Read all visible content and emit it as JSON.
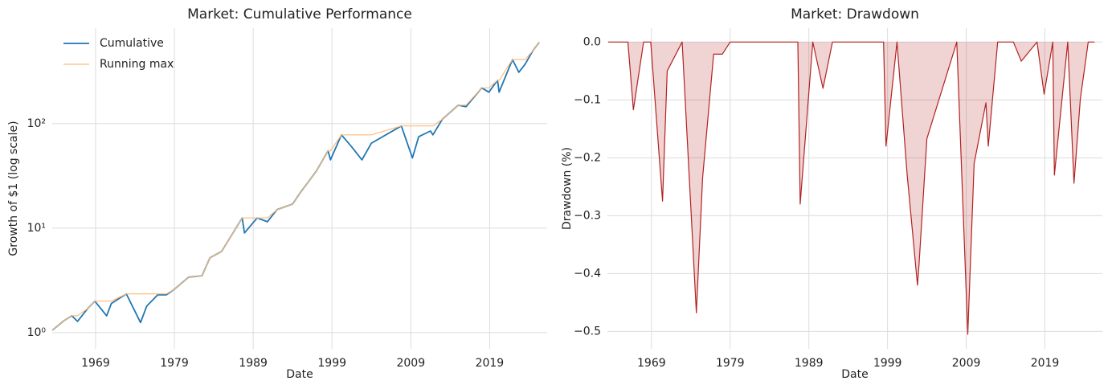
{
  "chart_data": [
    {
      "type": "line",
      "title": "Market: Cumulative Performance",
      "xlabel": "Date",
      "ylabel": "Growth of $1 (log scale)",
      "log_scale": true,
      "grid": true,
      "legend": "upper left",
      "xlim": [
        1963.5,
        2026.3
      ],
      "xticks": [
        1969,
        1979,
        1989,
        1999,
        2009,
        2019
      ],
      "ylim": [
        0.7,
        820
      ],
      "yticks": [
        {
          "value": 1,
          "label": "10⁰"
        },
        {
          "value": 10,
          "label": "10¹"
        },
        {
          "value": 100,
          "label": "10²"
        }
      ],
      "x": [
        1963.5,
        1965,
        1966,
        1966.7,
        1968,
        1968.9,
        1970.4,
        1971,
        1972.9,
        1974.7,
        1975.5,
        1976.9,
        1978,
        1979,
        1980.8,
        1982.5,
        1983.5,
        1985,
        1987.6,
        1987.9,
        1989.5,
        1990.8,
        1992,
        1994,
        1995,
        1997,
        1998.5,
        1998.8,
        2000.2,
        2001.5,
        2002.8,
        2003,
        2004,
        2007.8,
        2009.2,
        2010,
        2011.5,
        2011.8,
        2013,
        2015,
        2016,
        2018,
        2018.9,
        2020,
        2020.2,
        2021.9,
        2022.7,
        2023.5,
        2024.5,
        2025.3
      ],
      "series": [
        {
          "name": "Cumulative",
          "color": "#1f77b4",
          "width": 1.8,
          "values": [
            1.05,
            1.3,
            1.45,
            1.28,
            1.7,
            2.0,
            1.45,
            1.9,
            2.35,
            1.25,
            1.8,
            2.3,
            2.3,
            2.6,
            3.4,
            3.5,
            5.2,
            6.0,
            12.5,
            9.0,
            12.5,
            11.5,
            15,
            17,
            22,
            35,
            55,
            45,
            78,
            60,
            45,
            48,
            65,
            95,
            47,
            75,
            85,
            78,
            110,
            150,
            145,
            220,
            200,
            260,
            200,
            410,
            310,
            370,
            500,
            600
          ]
        },
        {
          "name": "Running max",
          "color": "#ffbb78",
          "width": 1.2,
          "values": [
            1.05,
            1.3,
            1.45,
            1.45,
            1.7,
            2.0,
            2.0,
            2.0,
            2.35,
            2.35,
            2.35,
            2.35,
            2.35,
            2.6,
            3.4,
            3.5,
            5.2,
            6.0,
            12.5,
            12.5,
            12.5,
            12.5,
            15,
            17,
            22,
            35,
            55,
            55,
            78,
            78,
            78,
            78,
            78,
            95,
            95,
            95,
            95,
            95,
            110,
            150,
            150,
            220,
            220,
            260,
            260,
            410,
            410,
            410,
            500,
            600
          ]
        }
      ]
    },
    {
      "type": "area",
      "title": "Market: Drawdown",
      "xlabel": "Date",
      "ylabel": "Drawdown (%)",
      "log_scale": false,
      "grid": true,
      "xlim": [
        1963.4,
        2026.3
      ],
      "xticks": [
        1969,
        1979,
        1989,
        1999,
        2009,
        2019
      ],
      "ylim": [
        -0.53,
        0.024
      ],
      "yticks": [
        {
          "value": -0.5,
          "label": "−0.5"
        },
        {
          "value": -0.4,
          "label": "−0.4"
        },
        {
          "value": -0.3,
          "label": "−0.3"
        },
        {
          "value": -0.2,
          "label": "−0.2"
        },
        {
          "value": -0.1,
          "label": "−0.1"
        },
        {
          "value": 0,
          "label": "0.0"
        }
      ],
      "x": [
        1963.5,
        1965,
        1966,
        1966.7,
        1968,
        1968.9,
        1970.4,
        1971,
        1972.9,
        1974.7,
        1975.5,
        1976.9,
        1978,
        1979,
        1980.8,
        1982.5,
        1983.5,
        1985,
        1987.6,
        1987.9,
        1989.5,
        1990.8,
        1992,
        1994,
        1995,
        1997,
        1998.5,
        1998.8,
        2000.2,
        2001.5,
        2002.8,
        2003,
        2004,
        2007.8,
        2009.2,
        2010,
        2011.5,
        2011.8,
        2013,
        2015,
        2016,
        2018,
        2018.9,
        2020,
        2020.2,
        2021.9,
        2022.7,
        2023.5,
        2024.5,
        2025.3
      ],
      "series": [
        {
          "name": "Drawdown",
          "color": "#b22222",
          "fill": "rgba(178,34,34,0.2)",
          "width": 1.2,
          "values": [
            0,
            0,
            0,
            -0.117,
            0,
            0,
            -0.275,
            -0.05,
            0,
            -0.468,
            -0.234,
            -0.021,
            -0.021,
            0,
            0,
            0,
            0,
            0,
            0,
            -0.28,
            0,
            -0.08,
            0,
            0,
            0,
            0,
            0,
            -0.18,
            0,
            -0.23,
            -0.42,
            -0.385,
            -0.167,
            0,
            -0.505,
            -0.21,
            -0.105,
            -0.18,
            0,
            0,
            -0.033,
            0,
            -0.09,
            0,
            -0.23,
            0,
            -0.244,
            -0.098,
            0,
            0
          ]
        }
      ]
    }
  ]
}
